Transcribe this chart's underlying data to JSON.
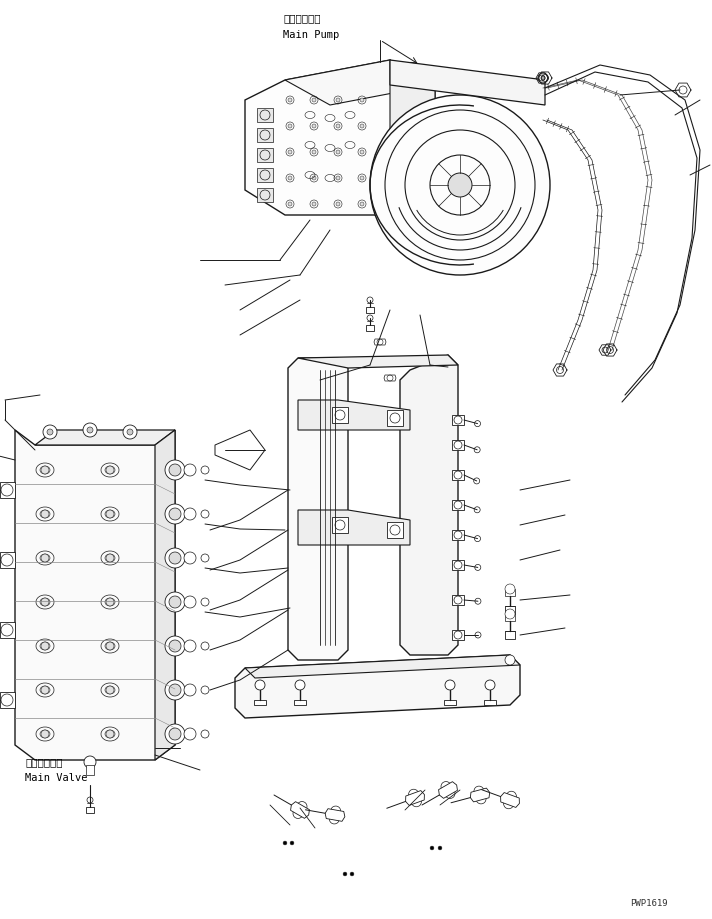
{
  "bg_color": "#ffffff",
  "line_color": "#1a1a1a",
  "line_width": 0.7,
  "label_main_pump_jp": "メインポンプ",
  "label_main_pump_en": "Main Pump",
  "label_main_valve_jp": "メインバルブ",
  "label_main_valve_en": "Main Valve",
  "watermark": "PWP1619",
  "font_size_label": 7.5,
  "font_size_watermark": 6.5
}
